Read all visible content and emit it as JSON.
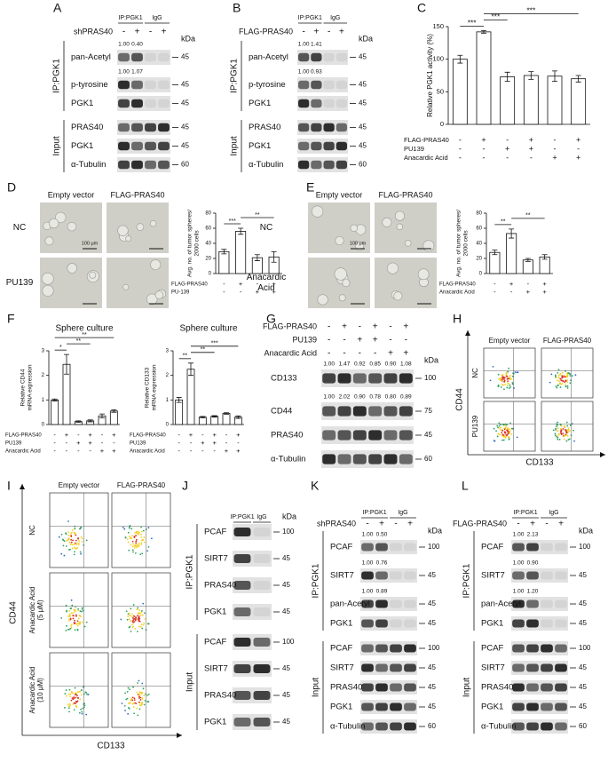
{
  "panel_letters": [
    "A",
    "B",
    "C",
    "D",
    "E",
    "F",
    "G",
    "H",
    "I",
    "J",
    "K",
    "L"
  ],
  "blots": [
    {
      "header": [
        "IP:PGK1",
        "IgG"
      ],
      "treatments": [
        {
          "name": "shPRAS40",
          "signs": [
            "-",
            "+",
            "-",
            "+"
          ]
        }
      ],
      "kda_title": "kDa",
      "groups": [
        {
          "label": "IP:PGK1",
          "rows": [
            {
              "name": "pan-Acetyl",
              "kda": "45",
              "quant": [
                "1.00",
                "0.40"
              ]
            },
            {
              "name": "p-tyrosine",
              "kda": "45",
              "quant": [
                "1.00",
                "1.07"
              ]
            },
            {
              "name": "PGK1",
              "kda": "45"
            }
          ]
        },
        {
          "label": "Input",
          "rows": [
            {
              "name": "PRAS40",
              "kda": "45"
            },
            {
              "name": "PGK1",
              "kda": "45"
            },
            {
              "name": "α-Tubulin",
              "kda": "60"
            }
          ]
        }
      ]
    },
    {
      "header": [
        "IP:PGK1",
        "IgG"
      ],
      "treatments": [
        {
          "name": "FLAG-PRAS40",
          "signs": [
            "-",
            "+",
            "-",
            "+"
          ]
        }
      ],
      "kda_title": "kDa",
      "groups": [
        {
          "label": "IP:PGK1",
          "rows": [
            {
              "name": "pan-Acetyl",
              "kda": "45",
              "quant": [
                "1.00",
                "1.41"
              ]
            },
            {
              "name": "p-tyrosine",
              "kda": "45",
              "quant": [
                "1.00",
                "0.93"
              ]
            },
            {
              "name": "PGK1",
              "kda": "45"
            }
          ]
        },
        {
          "label": "Input",
          "rows": [
            {
              "name": "PRAS40",
              "kda": "45"
            },
            {
              "name": "PGK1",
              "kda": "45"
            },
            {
              "name": "α-Tubulin",
              "kda": "60"
            }
          ]
        }
      ]
    },
    {
      "treatments": [
        {
          "name": "FLAG-PRAS40",
          "signs": [
            "-",
            "+",
            "-",
            "+",
            "-",
            "+"
          ]
        },
        {
          "name": "PU139",
          "signs": [
            "-",
            "-",
            "+",
            "+",
            "-",
            "-"
          ]
        },
        {
          "name": "Anacardic Acid",
          "signs": [
            "-",
            "-",
            "-",
            "-",
            "+",
            "+"
          ]
        }
      ],
      "kda_title": "kDa",
      "groups": [
        {
          "rows": [
            {
              "name": "CD133",
              "kda": "100",
              "quant": [
                "1.00",
                "1.47",
                "0.92",
                "0.85",
                "0.90",
                "1.08"
              ]
            },
            {
              "name": "CD44",
              "kda": "75",
              "quant": [
                "1.00",
                "2.02",
                "0.90",
                "0.78",
                "0.80",
                "0.89"
              ]
            },
            {
              "name": "PRAS40",
              "kda": "45"
            },
            {
              "name": "α-Tubulin",
              "kda": "60"
            }
          ]
        }
      ]
    },
    {
      "header": [
        "IP:PGK1",
        "IgG"
      ],
      "kda_title": "kDa",
      "groups": [
        {
          "label": "IP:PGK1",
          "rows": [
            {
              "name": "PCAF",
              "kda": "100"
            },
            {
              "name": "SIRT7",
              "kda": "45"
            },
            {
              "name": "PRAS40",
              "kda": "45"
            },
            {
              "name": "PGK1",
              "kda": "45"
            }
          ]
        },
        {
          "label": "Input",
          "rows": [
            {
              "name": "PCAF",
              "kda": "100"
            },
            {
              "name": "SIRT7",
              "kda": "45"
            },
            {
              "name": "PRAS40",
              "kda": "45"
            },
            {
              "name": "PGK1",
              "kda": "45"
            }
          ]
        }
      ]
    },
    {
      "header": [
        "IP:PGK1",
        "IgG"
      ],
      "treatments": [
        {
          "name": "shPRAS40",
          "signs": [
            "-",
            "+",
            "-",
            "+"
          ]
        }
      ],
      "kda_title": "kDa",
      "groups": [
        {
          "label": "IP:PGK1",
          "rows": [
            {
              "name": "PCAF",
              "kda": "100",
              "quant": [
                "1.00",
                "0.50"
              ]
            },
            {
              "name": "SIRT7",
              "kda": "45",
              "quant": [
                "1.00",
                "0.76"
              ]
            },
            {
              "name": "pan-Acetyl",
              "kda": "45",
              "quant": [
                "1.00",
                "0.89"
              ]
            },
            {
              "name": "PGK1",
              "kda": "45"
            }
          ]
        },
        {
          "label": "Input",
          "rows": [
            {
              "name": "PCAF",
              "kda": "100"
            },
            {
              "name": "SIRT7",
              "kda": "45"
            },
            {
              "name": "PRAS40",
              "kda": "45"
            },
            {
              "name": "PGK1",
              "kda": "45"
            },
            {
              "name": "α-Tubulin",
              "kda": "60"
            }
          ]
        }
      ]
    },
    {
      "header": [
        "IP:PGK1",
        "IgG"
      ],
      "treatments": [
        {
          "name": "FLAG-PRAS40",
          "signs": [
            "-",
            "+",
            "-",
            "+"
          ]
        }
      ],
      "kda_title": "kDa",
      "groups": [
        {
          "label": "IP:PGK1",
          "rows": [
            {
              "name": "PCAF",
              "kda": "100",
              "quant": [
                "1.00",
                "2.13"
              ]
            },
            {
              "name": "SIRT7",
              "kda": "45",
              "quant": [
                "1.00",
                "0.90"
              ]
            },
            {
              "name": "pan-Acetyl",
              "kda": "45",
              "quant": [
                "1.00",
                "1.20"
              ]
            },
            {
              "name": "PGK1",
              "kda": "45"
            }
          ]
        },
        {
          "label": "Input",
          "rows": [
            {
              "name": "PCAF",
              "kda": "100"
            },
            {
              "name": "SIRT7",
              "kda": "45"
            },
            {
              "name": "PRAS40",
              "kda": "45"
            },
            {
              "name": "PGK1",
              "kda": "45"
            },
            {
              "name": "α-Tubulin",
              "kda": "60"
            }
          ]
        }
      ]
    }
  ],
  "chart_data": [
    {
      "type": "bar",
      "ylabel": "Relative PGK1 activity (%)",
      "values": [
        100,
        142,
        73,
        75,
        74,
        70
      ],
      "errors": [
        6,
        2,
        7,
        6,
        8,
        5
      ],
      "color": "#ffffff",
      "ylim": [
        0,
        150
      ],
      "yticks": [
        0,
        50,
        100,
        150
      ],
      "conditions": [
        {
          "name": "FLAG-PRAS40",
          "signs": [
            "-",
            "+",
            "-",
            "+",
            "-",
            "+"
          ]
        },
        {
          "name": "PU139",
          "signs": [
            "-",
            "-",
            "+",
            "+",
            "-",
            "-"
          ]
        },
        {
          "name": "Anacardic Acid",
          "signs": [
            "-",
            "-",
            "-",
            "-",
            "+",
            "+"
          ]
        }
      ],
      "significance": [
        {
          "label": "***",
          "bars": [
            0,
            1
          ]
        },
        {
          "label": "***",
          "bars": [
            1,
            2
          ]
        },
        {
          "label": "***",
          "bars": [
            1,
            5
          ]
        }
      ]
    },
    {
      "type": "bar",
      "ylabel": [
        "Avg. no. of tumor spheres/",
        "2000 cells"
      ],
      "values": [
        29,
        56,
        21,
        22
      ],
      "errors": [
        3,
        4,
        4,
        7
      ],
      "color": "#ffffff",
      "ylim": [
        0,
        80
      ],
      "yticks": [
        0,
        20,
        40,
        60,
        80
      ],
      "conditions": [
        {
          "name": "FLAG-PRAS40",
          "signs": [
            "-",
            "+",
            "-",
            "+"
          ]
        },
        {
          "name": "PU-139",
          "signs": [
            "-",
            "-",
            "+",
            "+"
          ]
        }
      ],
      "significance": [
        {
          "label": "***",
          "bars": [
            0,
            1
          ]
        },
        {
          "label": "**",
          "bars": [
            1,
            3
          ]
        }
      ]
    },
    {
      "type": "bar",
      "ylabel": [
        "Avg. no. of tumor spheres/",
        "2000 cells"
      ],
      "values": [
        28,
        53,
        18,
        22
      ],
      "errors": [
        3,
        6,
        2,
        3
      ],
      "color": "#ffffff",
      "ylim": [
        0,
        80
      ],
      "yticks": [
        0,
        20,
        40,
        60,
        80
      ],
      "conditions": [
        {
          "name": "FLAG-PRAS40",
          "signs": [
            "-",
            "+",
            "-",
            "+"
          ]
        },
        {
          "name": "Anacardic Acid",
          "signs": [
            "-",
            "-",
            "+",
            "+"
          ]
        }
      ],
      "significance": [
        {
          "label": "**",
          "bars": [
            0,
            1
          ]
        },
        {
          "label": "**",
          "bars": [
            1,
            3
          ]
        }
      ]
    },
    {
      "type": "bar",
      "title": "Sphere culture",
      "ylabel": [
        "Relative CD44",
        "mRNA expression"
      ],
      "values": [
        1.0,
        2.45,
        0.12,
        0.15,
        0.35,
        0.55
      ],
      "errors": [
        0.04,
        0.4,
        0.03,
        0.04,
        0.08,
        0.05
      ],
      "color": "#ffffff",
      "ylim": [
        0,
        3
      ],
      "yticks": [
        0,
        1,
        2,
        3
      ],
      "conditions": [
        {
          "name": "FLAG-PRAS40",
          "signs": [
            "-",
            "+",
            "-",
            "+",
            "-",
            "+"
          ]
        },
        {
          "name": "PU139",
          "signs": [
            "-",
            "-",
            "+",
            "+",
            "-",
            "-"
          ]
        },
        {
          "name": "Anacardic Acid",
          "signs": [
            "-",
            "-",
            "-",
            "-",
            "+",
            "+"
          ]
        }
      ],
      "significance": [
        {
          "label": "*",
          "bars": [
            0,
            1
          ]
        },
        {
          "label": "**",
          "bars": [
            1,
            3
          ]
        },
        {
          "label": "**",
          "bars": [
            0,
            5
          ]
        }
      ]
    },
    {
      "type": "bar",
      "title": "Sphere culture",
      "ylabel": [
        "Relative CD133",
        "mRNA expression"
      ],
      "values": [
        1.0,
        2.25,
        0.3,
        0.33,
        0.45,
        0.3
      ],
      "errors": [
        0.1,
        0.25,
        0.03,
        0.03,
        0.03,
        0.05
      ],
      "color": "#ffffff",
      "ylim": [
        0,
        3
      ],
      "yticks": [
        0,
        1,
        2,
        3
      ],
      "conditions": [
        {
          "name": "FLAG-PRAS40",
          "signs": [
            "-",
            "+",
            "-",
            "+",
            "-",
            "+"
          ]
        },
        {
          "name": "PU139",
          "signs": [
            "-",
            "-",
            "+",
            "+",
            "-",
            "-"
          ]
        },
        {
          "name": "Anacardic Acid",
          "signs": [
            "-",
            "-",
            "-",
            "-",
            "+",
            "+"
          ]
        }
      ],
      "significance": [
        {
          "label": "**",
          "bars": [
            0,
            1
          ]
        },
        {
          "label": "**",
          "bars": [
            1,
            3
          ]
        },
        {
          "label": "***",
          "bars": [
            1,
            5
          ]
        }
      ]
    }
  ],
  "micrographs": [
    {
      "columns": [
        "Empty vector",
        "FLAG-PRAS40"
      ],
      "rows": [
        [
          "NC"
        ],
        [
          "PU139"
        ]
      ],
      "scale": "100 μm"
    },
    {
      "columns": [
        "Empty vector",
        "FLAG-PRAS40"
      ],
      "rows": [
        [
          "NC"
        ],
        [
          "Anacardic",
          "Acid"
        ]
      ],
      "scale": "100 μm"
    }
  ],
  "flow": [
    {
      "columns": [
        "Empty vector",
        "FLAG-PRAS40"
      ],
      "rows": [
        [
          "NC"
        ],
        [
          "PU139"
        ]
      ],
      "y_axis": "CD44",
      "x_axis": "CD133"
    },
    {
      "columns": [
        "Empty vector",
        "FLAG-PRAS40"
      ],
      "rows": [
        [
          "NC"
        ],
        [
          "Anacardic Acid",
          "(5 μM)"
        ],
        [
          "Anacardic Acid",
          "(10 μM)"
        ]
      ],
      "y_axis": "CD44",
      "x_axis": "CD133"
    }
  ]
}
